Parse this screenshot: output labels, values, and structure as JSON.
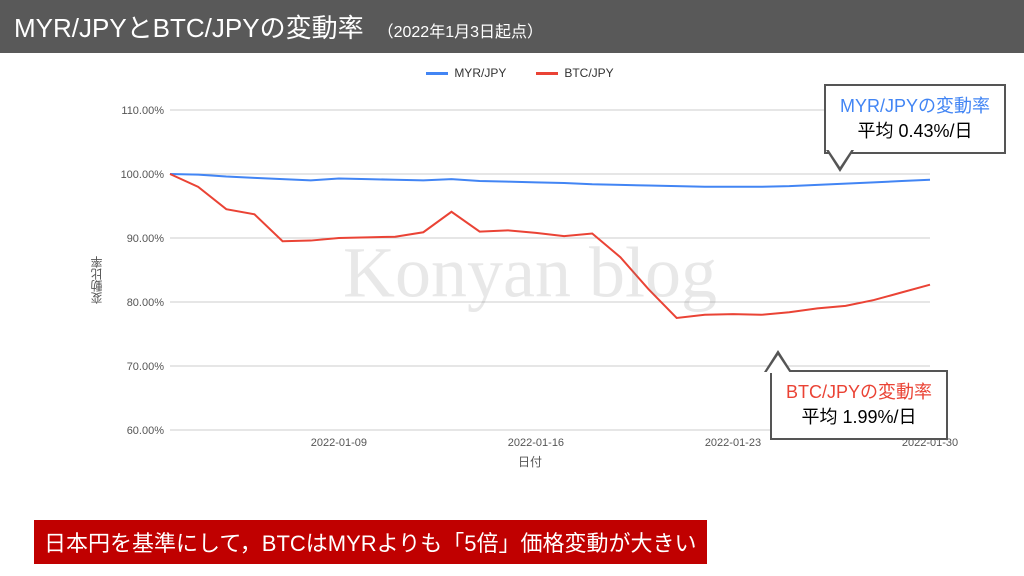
{
  "header": {
    "title": "MYR/JPYとBTC/JPYの変動率",
    "subtitle": "（2022年1月3日起点）",
    "bg": "#595959",
    "fg": "#ffffff"
  },
  "chart": {
    "type": "line",
    "legend": [
      {
        "label": "MYR/JPY",
        "color": "#4285f4"
      },
      {
        "label": "BTC/JPY",
        "color": "#ea4335"
      }
    ],
    "ylabel": "変動比率",
    "xlabel": "日付",
    "ylim": [
      60,
      110
    ],
    "ytick_step": 10,
    "ytick_format_suffix": ".00%",
    "grid_color": "#cccccc",
    "background_color": "#ffffff",
    "line_width": 2,
    "x_count": 28,
    "xticks": [
      {
        "index": 6,
        "label": "2022-01-09"
      },
      {
        "index": 13,
        "label": "2022-01-16"
      },
      {
        "index": 20,
        "label": "2022-01-23"
      },
      {
        "index": 27,
        "label": "2022-01-30"
      }
    ],
    "series": {
      "myr": {
        "color": "#4285f4",
        "values": [
          100.0,
          99.9,
          99.6,
          99.4,
          99.2,
          99.0,
          99.3,
          99.2,
          99.1,
          99.0,
          99.2,
          98.9,
          98.8,
          98.7,
          98.6,
          98.4,
          98.3,
          98.2,
          98.1,
          98.0,
          98.0,
          98.0,
          98.1,
          98.3,
          98.5,
          98.7,
          98.9,
          99.1
        ]
      },
      "btc": {
        "color": "#ea4335",
        "values": [
          100.0,
          98.0,
          94.5,
          93.7,
          89.5,
          89.6,
          90.0,
          90.1,
          90.2,
          90.9,
          94.1,
          91.0,
          91.2,
          90.8,
          90.3,
          90.7,
          87.0,
          82.0,
          77.5,
          78.0,
          78.1,
          78.0,
          78.4,
          79.0,
          79.4,
          80.3,
          81.5,
          82.7
        ]
      }
    }
  },
  "watermark": "Konyan blog",
  "callouts": {
    "top": {
      "line1": "MYR/JPYの変動率",
      "line1_color": "#4285f4",
      "line2": "平均 0.43%/日"
    },
    "bottom": {
      "line1": "BTC/JPYの変動率",
      "line1_color": "#ea4335",
      "line2": "平均 1.99%/日"
    }
  },
  "footer": {
    "text": "日本円を基準にして，BTCはMYRよりも「5倍」価格変動が大きい",
    "bg": "#c00000",
    "fg": "#ffffff"
  }
}
